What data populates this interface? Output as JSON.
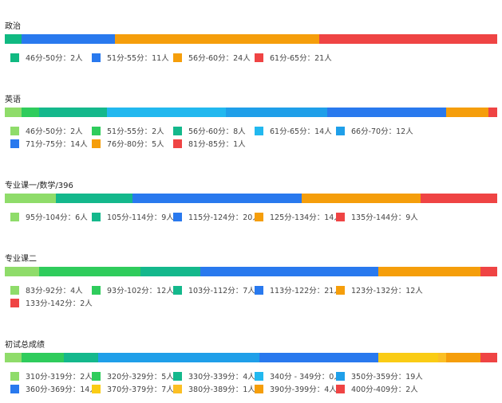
{
  "chart_data": [
    {
      "type": "bar",
      "stacked": true,
      "orientation": "horizontal",
      "title": "政治",
      "series": [
        {
          "name": "46分-50分",
          "value": 2,
          "label": "46分-50分：2人",
          "color": "#10b981"
        },
        {
          "name": "51分-55分",
          "value": 11,
          "label": "51分-55分：11人",
          "color": "#2979ee"
        },
        {
          "name": "56分-60分",
          "value": 24,
          "label": "56分-60分：24人",
          "color": "#f59e0b"
        },
        {
          "name": "61分-65分",
          "value": 21,
          "label": "61分-65分：21人",
          "color": "#ef4444"
        }
      ]
    },
    {
      "type": "bar",
      "stacked": true,
      "orientation": "horizontal",
      "title": "英语",
      "series": [
        {
          "name": "46分-50分",
          "value": 2,
          "label": "46分-50分：2人",
          "color": "#8fdc6a"
        },
        {
          "name": "51分-55分",
          "value": 2,
          "label": "51分-55分：2人",
          "color": "#2fcc5c"
        },
        {
          "name": "56分-60分",
          "value": 8,
          "label": "56分-60分：8人",
          "color": "#14b88c"
        },
        {
          "name": "61分-65分",
          "value": 14,
          "label": "61分-65分：14人",
          "color": "#22b8ef"
        },
        {
          "name": "66分-70分",
          "value": 12,
          "label": "66分-70分：12人",
          "color": "#1f9fe9"
        },
        {
          "name": "71分-75分",
          "value": 14,
          "label": "71分-75分：14人",
          "color": "#2979ee"
        },
        {
          "name": "76分-80分",
          "value": 5,
          "label": "76分-80分：5人",
          "color": "#f59e0b"
        },
        {
          "name": "81分-85分",
          "value": 1,
          "label": "81分-85分：1人",
          "color": "#ef4444"
        }
      ]
    },
    {
      "type": "bar",
      "stacked": true,
      "orientation": "horizontal",
      "title": "专业课一/数学/396",
      "series": [
        {
          "name": "95分-104分",
          "value": 6,
          "label": "95分-104分：6人",
          "color": "#8fdc6a"
        },
        {
          "name": "105分-114分",
          "value": 9,
          "label": "105分-114分：9人",
          "color": "#14b88c"
        },
        {
          "name": "115分-124分",
          "value": 20,
          "label": "115分-124分：20人",
          "color": "#2979ee"
        },
        {
          "name": "125分-134分",
          "value": 14,
          "label": "125分-134分：14人",
          "color": "#f59e0b"
        },
        {
          "name": "135分-144分",
          "value": 9,
          "label": "135分-144分：9人",
          "color": "#ef4444"
        }
      ]
    },
    {
      "type": "bar",
      "stacked": true,
      "orientation": "horizontal",
      "title": "专业课二",
      "series": [
        {
          "name": "83分-92分",
          "value": 4,
          "label": "83分-92分：4人",
          "color": "#8fdc6a"
        },
        {
          "name": "93分-102分",
          "value": 12,
          "label": "93分-102分：12人",
          "color": "#2fcc5c"
        },
        {
          "name": "103分-112分",
          "value": 7,
          "label": "103分-112分：7人",
          "color": "#14b88c"
        },
        {
          "name": "113分-122分",
          "value": 21,
          "label": "113分-122分：21人",
          "color": "#2979ee"
        },
        {
          "name": "123分-132分",
          "value": 12,
          "label": "123分-132分：12人",
          "color": "#f59e0b"
        },
        {
          "name": "133分-142分",
          "value": 2,
          "label": "133分-142分：2人",
          "color": "#ef4444"
        }
      ]
    },
    {
      "type": "bar",
      "stacked": true,
      "orientation": "horizontal",
      "title": "初试总成绩",
      "series": [
        {
          "name": "310分-319分",
          "value": 2,
          "label": "310分-319分：2人",
          "color": "#8fdc6a"
        },
        {
          "name": "320分-329分",
          "value": 5,
          "label": "320分-329分：5人",
          "color": "#2fcc5c"
        },
        {
          "name": "330分-339分",
          "value": 4,
          "label": "330分-339分：4人",
          "color": "#14b88c"
        },
        {
          "name": "340分 - 349分",
          "value": 0,
          "label": "340分 - 349分：0人",
          "color": "#22b8ef"
        },
        {
          "name": "350分-359分",
          "value": 19,
          "label": "350分-359分：19人",
          "color": "#1f9fe9"
        },
        {
          "name": "360分-369分",
          "value": 14,
          "label": "360分-369分：14人",
          "color": "#2979ee"
        },
        {
          "name": "370分-379分",
          "value": 7,
          "label": "370分-379分：7人",
          "color": "#facc15"
        },
        {
          "name": "380分-389分",
          "value": 1,
          "label": "380分-389分：1人",
          "color": "#fbbf24"
        },
        {
          "name": "390分-399分",
          "value": 4,
          "label": "390分-399分：4人",
          "color": "#f59e0b"
        },
        {
          "name": "400分-409分",
          "value": 2,
          "label": "400分-409分：2人",
          "color": "#ef4444"
        }
      ]
    }
  ]
}
